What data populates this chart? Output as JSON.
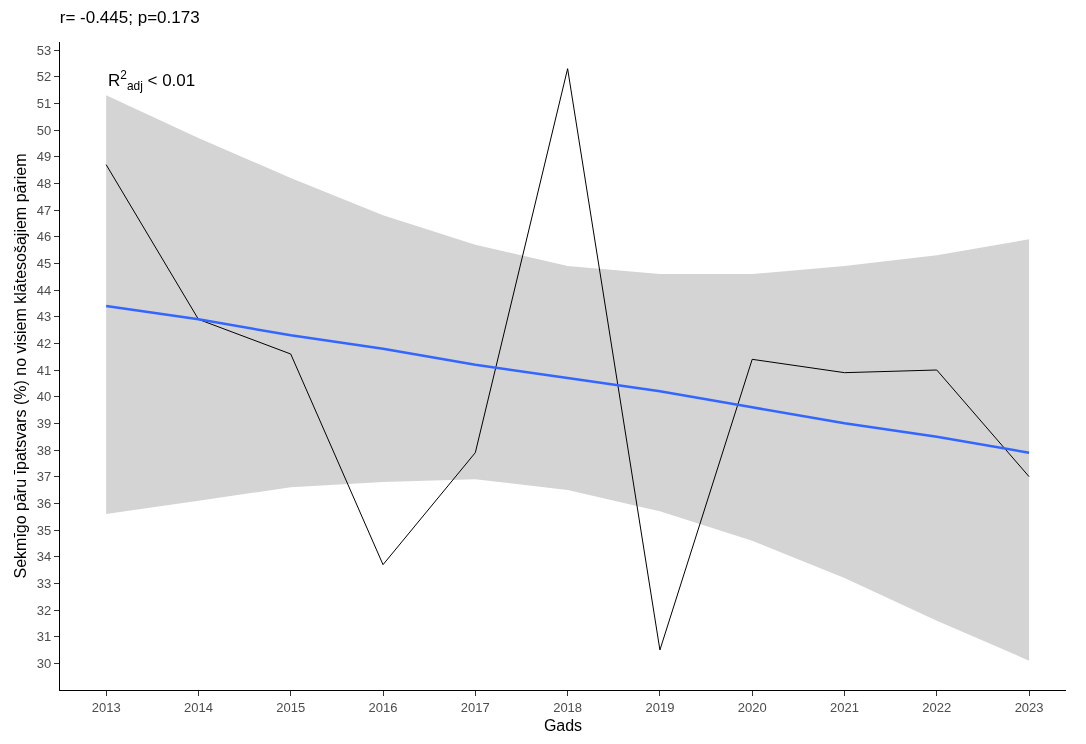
{
  "chart_data": {
    "type": "line",
    "title": "r= -0.445; p=0.173",
    "xlabel": "Gads",
    "ylabel": "Sekmīgo pāru īpatsvars (%) no visiem klātesošajiem pāriem",
    "x": [
      2013,
      2014,
      2015,
      2016,
      2017,
      2018,
      2019,
      2020,
      2021,
      2022,
      2023
    ],
    "series": [
      {
        "color": "#000000",
        "values": [
          48.7,
          42.9,
          41.6,
          33.7,
          37.9,
          52.3,
          30.5,
          41.4,
          40.9,
          41.0,
          37.0
        ]
      },
      {
        "color": "#3366ff",
        "values": [
          43.4,
          42.9,
          42.3,
          41.8,
          41.2,
          40.7,
          40.2,
          39.6,
          39.0,
          38.5,
          37.9
        ],
        "lower": [
          35.6,
          36.1,
          36.6,
          36.8,
          36.9,
          36.5,
          35.7,
          34.6,
          33.2,
          31.6,
          30.1
        ],
        "upper": [
          51.3,
          49.7,
          48.2,
          46.8,
          45.7,
          44.9,
          44.6,
          44.6,
          44.9,
          45.3,
          45.9
        ]
      }
    ],
    "annotations": [
      {
        "text": "R$^{2}$$_{adj}$ < 0.01",
        "x": 2013,
        "y": 51.3
      }
    ],
    "xlim": [
      2012.5,
      2023.4
    ],
    "ylim": [
      29.0,
      53.3
    ],
    "xticks": [
      2013,
      2014,
      2015,
      2016,
      2017,
      2018,
      2019,
      2020,
      2021,
      2022,
      2023
    ],
    "yticks": [
      30,
      31,
      32,
      33,
      34,
      35,
      36,
      37,
      38,
      39,
      40,
      41,
      42,
      43,
      44,
      45,
      46,
      47,
      48,
      49,
      50,
      51,
      52,
      53
    ],
    "marker": "none",
    "line_style": "solid"
  }
}
